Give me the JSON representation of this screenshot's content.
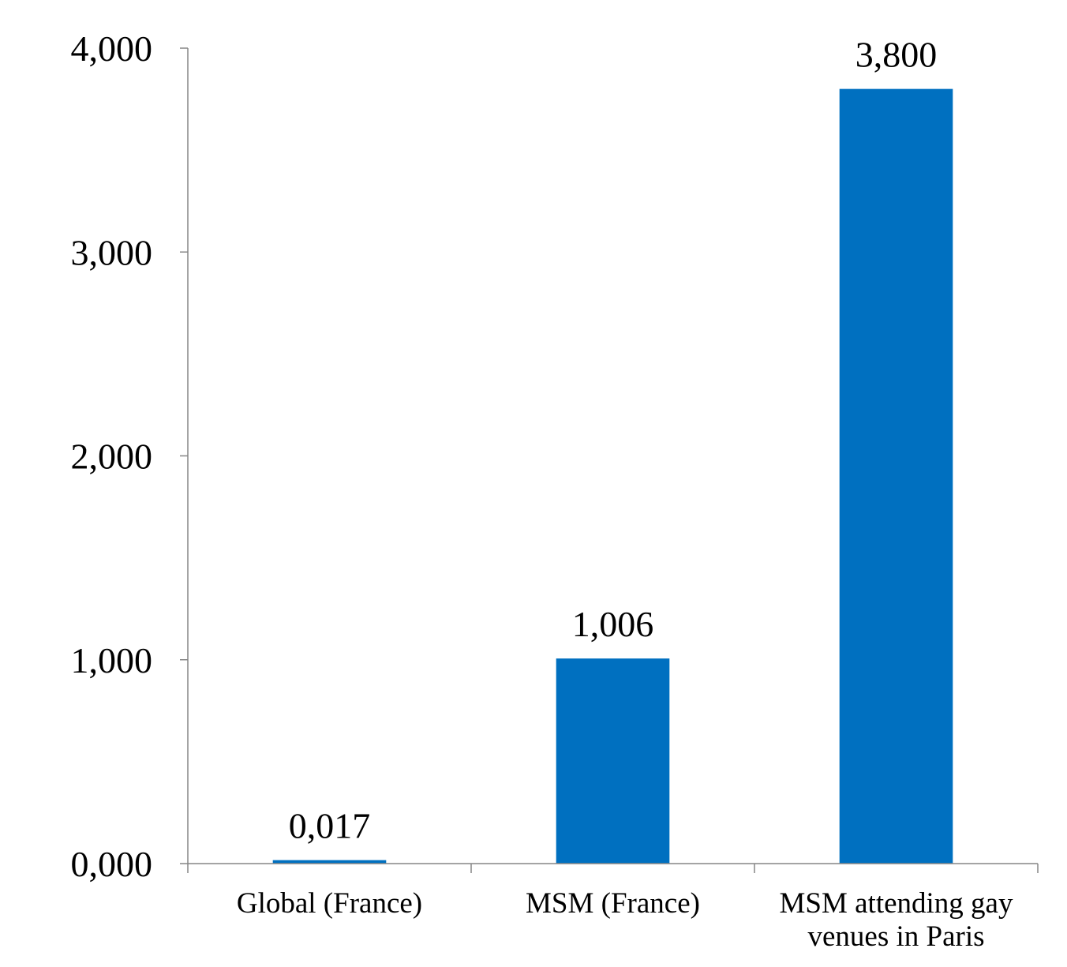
{
  "chart_data": {
    "type": "bar",
    "title": "",
    "xlabel": "",
    "ylabel": "",
    "categories": [
      [
        "Global (France)"
      ],
      [
        "MSM (France)"
      ],
      [
        "MSM attending gay",
        "venues in Paris"
      ]
    ],
    "values": [
      0.017,
      1.006,
      3.8
    ],
    "data_labels": [
      "0,017",
      "1,006",
      "3,800"
    ],
    "yticks": [
      0,
      1,
      2,
      3,
      4
    ],
    "ytick_labels": [
      "0,000",
      "1,000",
      "2,000",
      "3,000",
      "4,000"
    ],
    "ylim": [
      0,
      4
    ],
    "grid": false,
    "legend": "none",
    "bar_color": "#0070C0"
  }
}
